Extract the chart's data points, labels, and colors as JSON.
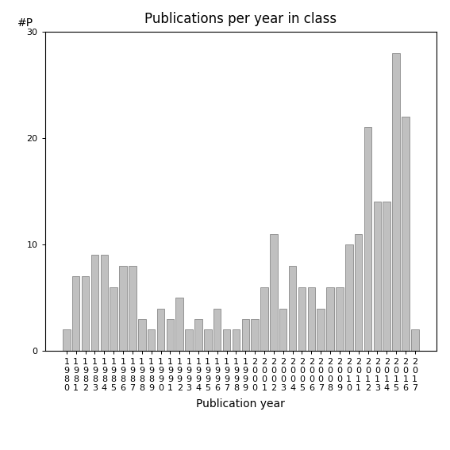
{
  "title": "Publications per year in class",
  "xlabel": "Publication year",
  "ylabel": "#P",
  "years": [
    "1980",
    "1981",
    "1982",
    "1983",
    "1984",
    "1985",
    "1986",
    "1987",
    "1988",
    "1989",
    "1990",
    "1991",
    "1992",
    "1993",
    "1994",
    "1995",
    "1996",
    "1997",
    "1998",
    "1999",
    "2000",
    "2001",
    "2002",
    "2003",
    "2004",
    "2005",
    "2006",
    "2007",
    "2008",
    "2009",
    "2010",
    "2011",
    "2012",
    "2013",
    "2014",
    "2015",
    "2016",
    "2017"
  ],
  "values": [
    2,
    7,
    7,
    9,
    9,
    6,
    8,
    8,
    3,
    2,
    4,
    3,
    5,
    2,
    3,
    2,
    4,
    2,
    2,
    3,
    3,
    6,
    11,
    4,
    8,
    6,
    6,
    4,
    6,
    6,
    10,
    11,
    21,
    14,
    14,
    28,
    22,
    2
  ],
  "bar_color": "#c0c0c0",
  "bar_edgecolor": "#888888",
  "ylim": [
    0,
    30
  ],
  "yticks": [
    0,
    10,
    20,
    30
  ],
  "figsize": [
    5.67,
    5.67
  ],
  "dpi": 100,
  "title_fontsize": 12,
  "axis_label_fontsize": 10,
  "tick_fontsize": 8,
  "background_color": "#ffffff"
}
